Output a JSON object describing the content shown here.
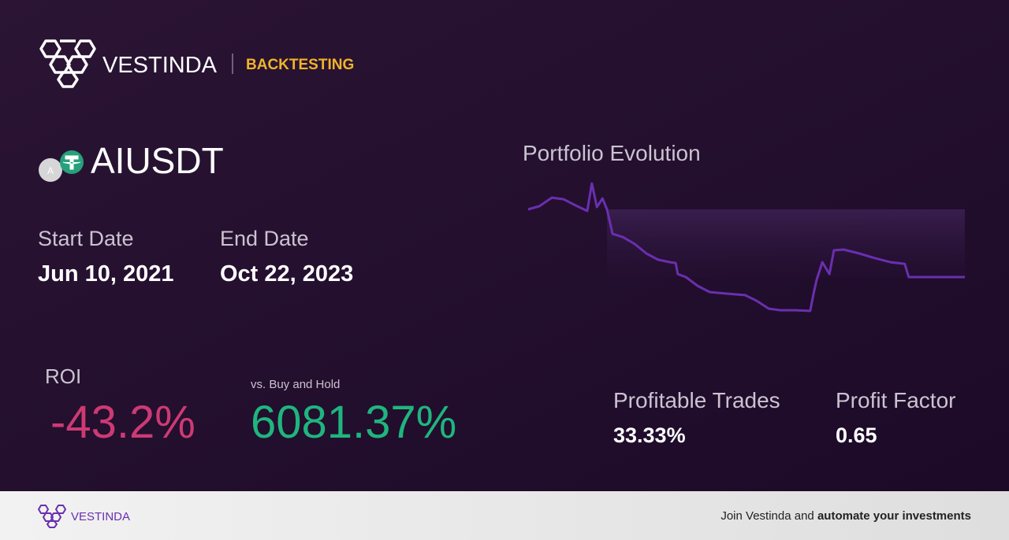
{
  "header": {
    "brand": "VESTINDA",
    "section": "BACKTESTING"
  },
  "asset": {
    "icon_letter": "A",
    "symbol": "AIUSDT"
  },
  "dates": {
    "start_label": "Start Date",
    "start_value": "Jun 10, 2021",
    "end_label": "End Date",
    "end_value": "Oct 22, 2023"
  },
  "roi": {
    "label": "ROI",
    "value": "-43.2%"
  },
  "buy_hold": {
    "label": "vs. Buy and Hold",
    "value": "6081.37%"
  },
  "stats": {
    "profitable_trades_label": "Profitable Trades",
    "profitable_trades_value": "33.33%",
    "profit_factor_label": "Profit Factor",
    "profit_factor_value": "0.65"
  },
  "chart_data": {
    "type": "line",
    "title": "Portfolio Evolution",
    "color": "#6a2fb0",
    "x": [
      0,
      22,
      47,
      70,
      94,
      117,
      126,
      136,
      147,
      156,
      167,
      187,
      211,
      234,
      257,
      281,
      292,
      296,
      312,
      335,
      359,
      390,
      429,
      452,
      476,
      499,
      530,
      558,
      565,
      571,
      582,
      596,
      605,
      624,
      655,
      686,
      717,
      745,
      753,
      780,
      864
    ],
    "values": [
      0,
      2.0,
      7.5,
      6.5,
      2.5,
      -1.0,
      16.6,
      1.5,
      7.0,
      0,
      -15.6,
      -17.6,
      -22.1,
      -28.1,
      -32.1,
      -33.7,
      -34.2,
      -41.2,
      -43.2,
      -48.7,
      -52.7,
      -53.7,
      -54.7,
      -58.3,
      -63.3,
      -64.3,
      -64.3,
      -64.8,
      -53.2,
      -44.7,
      -33.7,
      -41.2,
      -26.1,
      -25.6,
      -28.1,
      -31.1,
      -33.7,
      -34.7,
      -43.2,
      -43.2,
      -43.2
    ],
    "xlim": [
      0,
      864
    ],
    "ylim": [
      -70,
      20
    ]
  },
  "footer": {
    "brand": "VESTINDA",
    "cta_text": "Join Vestinda and",
    "cta_bold": "automate your investments"
  }
}
